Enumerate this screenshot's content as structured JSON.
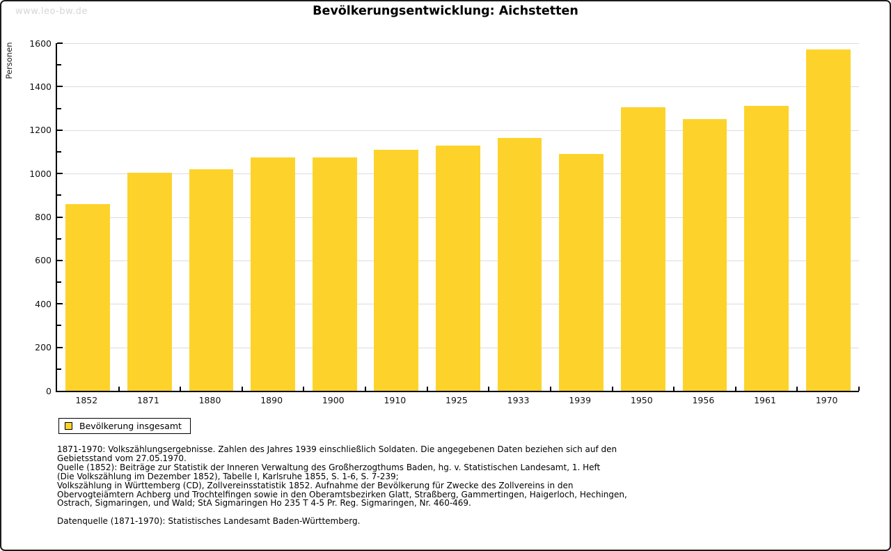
{
  "page": {
    "watermark": "www.leo-bw.de",
    "title": "Bevölkerungsentwicklung: Aichstetten"
  },
  "chart_data": {
    "type": "bar",
    "title": "Bevölkerungsentwicklung: Aichstetten",
    "xlabel": "",
    "ylabel": "Personen",
    "ylim": [
      0,
      1600
    ],
    "y_major_step": 200,
    "y_minor_step": 100,
    "grid": true,
    "legend_position": "bottom-left",
    "categories": [
      "1852",
      "1871",
      "1880",
      "1890",
      "1900",
      "1910",
      "1925",
      "1933",
      "1939",
      "1950",
      "1956",
      "1961",
      "1970"
    ],
    "series": [
      {
        "name": "Bevölkerung insgesamt",
        "values": [
          860,
          1005,
          1020,
          1075,
          1075,
          1110,
          1130,
          1165,
          1090,
          1305,
          1250,
          1310,
          1570
        ]
      }
    ],
    "bar_color": "#FDD32B",
    "grid_color": "#DCDCDC",
    "axis_color": "#000000"
  },
  "legend": {
    "label": "Bevölkerung insgesamt",
    "swatch_color": "#FDD32B"
  },
  "footer": {
    "notes": [
      "1871-1970: Volkszählungsergebnisse. Zahlen des Jahres 1939 einschließlich Soldaten. Die angegebenen Daten beziehen sich auf den",
      "Gebietsstand vom 27.05.1970.",
      "Quelle (1852): Beiträge zur Statistik der Inneren Verwaltung des Großherzogthums Baden, hg. v. Statistischen Landesamt, 1. Heft",
      "(Die Volkszählung im Dezember 1852), Tabelle I, Karlsruhe 1855, S. 1-6, S. 7-239;",
      "Volkszählung in Württemberg (CD), Zollvereinsstatistik 1852. Aufnahme der Bevölkerung für Zwecke des Zollvereins in den",
      "Obervogteiämtern Achberg und Trochtelfingen sowie in den Oberamtsbezirken Glatt, Straßberg, Gammertingen, Haigerloch, Hechingen,",
      "Ostrach, Sigmaringen, und Wald; StA Sigmaringen Ho 235 T 4-5 Pr. Reg. Sigmaringen, Nr. 460-469."
    ],
    "datasource": "Datenquelle (1871-1970): Statistisches Landesamt Baden-Württemberg."
  }
}
